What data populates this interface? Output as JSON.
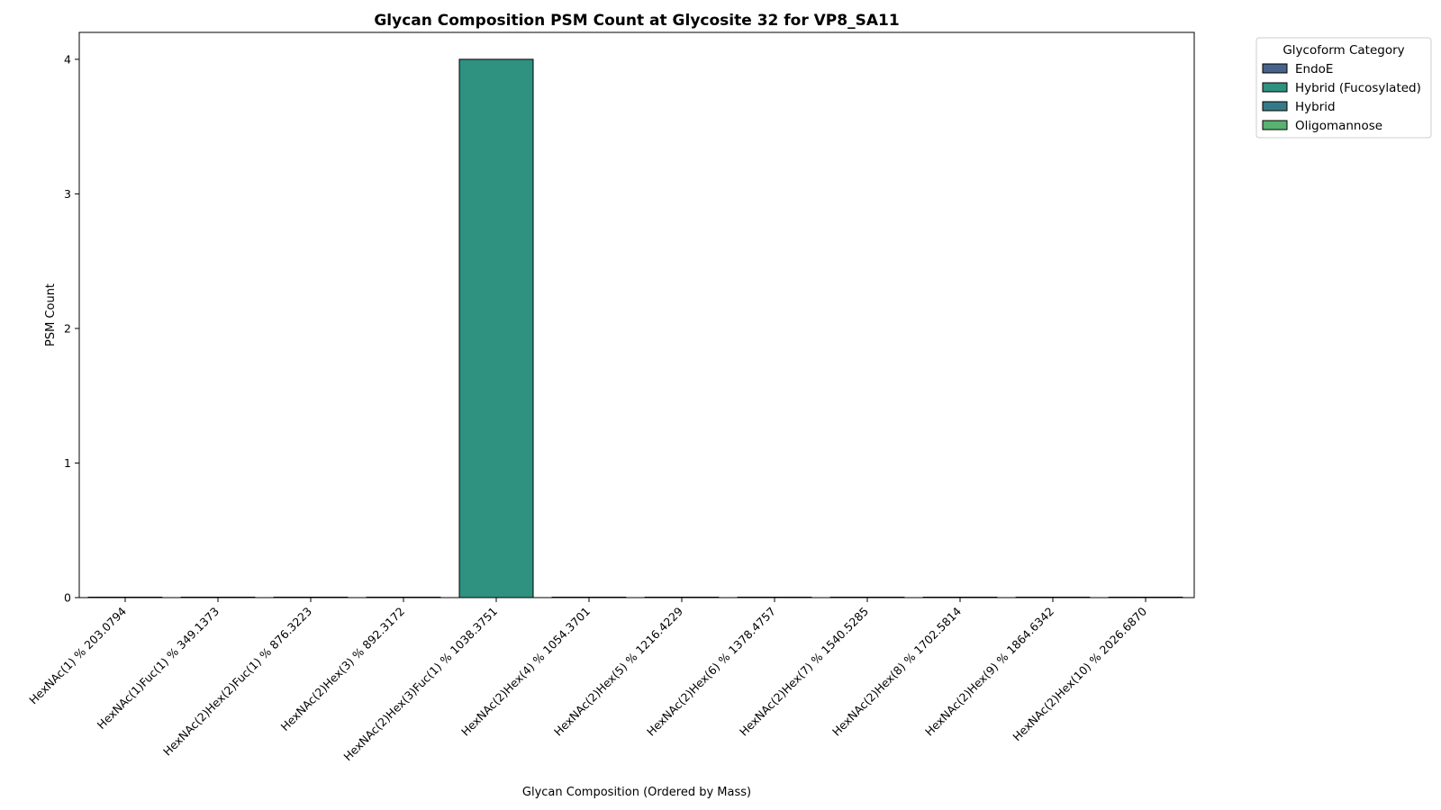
{
  "chart_data": {
    "type": "bar",
    "title": "Glycan Composition PSM Count at Glycosite 32 for VP8_SA11",
    "xlabel": "Glycan Composition (Ordered by Mass)",
    "ylabel": "PSM Count",
    "ylim": [
      0,
      4.2
    ],
    "yticks": [
      "0",
      "1",
      "2",
      "3",
      "4"
    ],
    "categories": [
      "HexNAc(1) % 203.0794",
      "HexNAc(1)Fuc(1) % 349.1373",
      "HexNAc(2)Hex(2)Fuc(1) % 876.3223",
      "HexNAc(2)Hex(3) % 892.3172",
      "HexNAc(2)Hex(3)Fuc(1) % 1038.3751",
      "HexNAc(2)Hex(4) % 1054.3701",
      "HexNAc(2)Hex(5) % 1216.4229",
      "HexNAc(2)Hex(6) % 1378.4757",
      "HexNAc(2)Hex(7) % 1540.5285",
      "HexNAc(2)Hex(8) % 1702.5814",
      "HexNAc(2)Hex(9) % 1864.6342",
      "HexNAc(2)Hex(10) % 2026.6870"
    ],
    "values": [
      0,
      0,
      0,
      0,
      4,
      0,
      0,
      0,
      0,
      0,
      0,
      0
    ],
    "bar_categories": [
      "EndoE",
      "EndoE",
      "Hybrid (Fucosylated)",
      "Oligomannose",
      "Hybrid (Fucosylated)",
      "Oligomannose",
      "Oligomannose",
      "Oligomannose",
      "Oligomannose",
      "Oligomannose",
      "Oligomannose",
      "Oligomannose"
    ],
    "legend": {
      "title": "Glycoform Category",
      "placement": "outside-top-right",
      "entries": [
        {
          "label": "EndoE",
          "color": "#46648b"
        },
        {
          "label": "Hybrid (Fucosylated)",
          "color": "#2f9180"
        },
        {
          "label": "Hybrid",
          "color": "#367a87"
        },
        {
          "label": "Oligomannose",
          "color": "#57b36f"
        }
      ]
    },
    "grid": false
  }
}
